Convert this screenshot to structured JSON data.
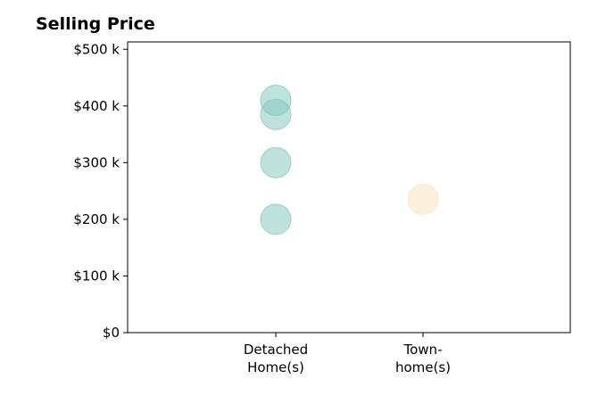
{
  "chart_data": {
    "type": "scatter",
    "title": "Selling Price",
    "xlabel": "",
    "ylabel": "",
    "categories": [
      "Detached Home(s)",
      "Town-home(s)"
    ],
    "category_label_lines": [
      [
        "Detached",
        "Home(s)"
      ],
      [
        "Town-",
        "home(s)"
      ]
    ],
    "yticks": [
      "$0",
      "$100 k",
      "$200 k",
      "$300 k",
      "$400 k",
      "$500 k"
    ],
    "ytick_values": [
      0,
      100000,
      200000,
      300000,
      400000,
      500000
    ],
    "ylim": [
      0,
      513000
    ],
    "grid": false,
    "series": [
      {
        "category": "Detached Home(s)",
        "color": "#7fc6bc",
        "values": [
          410000,
          385000,
          300000,
          200000
        ]
      },
      {
        "category": "Town-home(s)",
        "color": "#f7e2b9",
        "values": [
          235000
        ]
      }
    ]
  }
}
